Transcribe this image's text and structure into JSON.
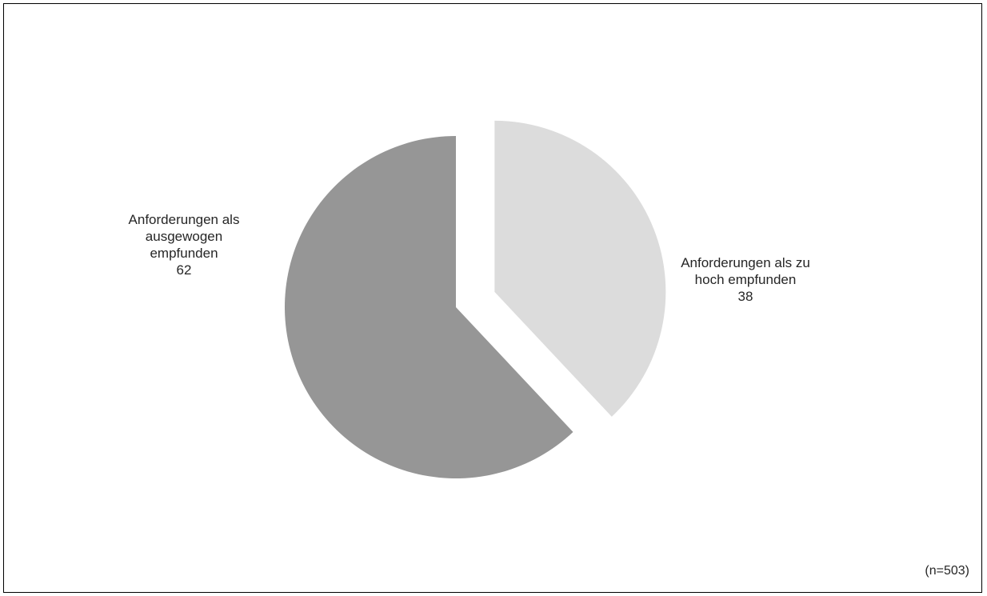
{
  "chart_data": {
    "type": "pie",
    "title": "",
    "slices": [
      {
        "label": "Anforderungen als zu hoch empfunden",
        "label_lines": [
          "Anforderungen als zu",
          "hoch empfunden"
        ],
        "value": 38,
        "color": "#dcdcdc",
        "exploded": true
      },
      {
        "label": "Anforderungen als ausgewogen empfunden",
        "label_lines": [
          "Anforderungen als",
          "ausgewogen",
          "empfunden"
        ],
        "value": 62,
        "color": "#969696",
        "exploded": false
      }
    ],
    "start_angle": "12 o'clock, clockwise",
    "note": "(n=503)"
  }
}
